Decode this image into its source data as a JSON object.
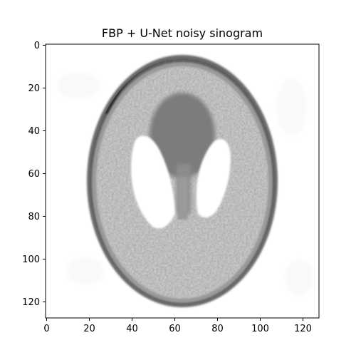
{
  "figure": {
    "title": "FBP + U-Net noisy sinogram",
    "x_ticks": [
      "0",
      "20",
      "40",
      "60",
      "80",
      "100",
      "120"
    ],
    "y_ticks": [
      "0",
      "20",
      "40",
      "60",
      "80",
      "100",
      "120"
    ],
    "image_extent": [
      128,
      128
    ],
    "colormap": "gray_r",
    "colors": {
      "axes_frame": "#000000",
      "background": "#ffffff",
      "outer_skull_dark": "#2a2a2a",
      "skull_ring": "#5a5a5a",
      "brain_tissue": "#d6d6d6",
      "ventricle_bright": "#ffffff",
      "central_dark_region": "#7a7a7a"
    }
  }
}
